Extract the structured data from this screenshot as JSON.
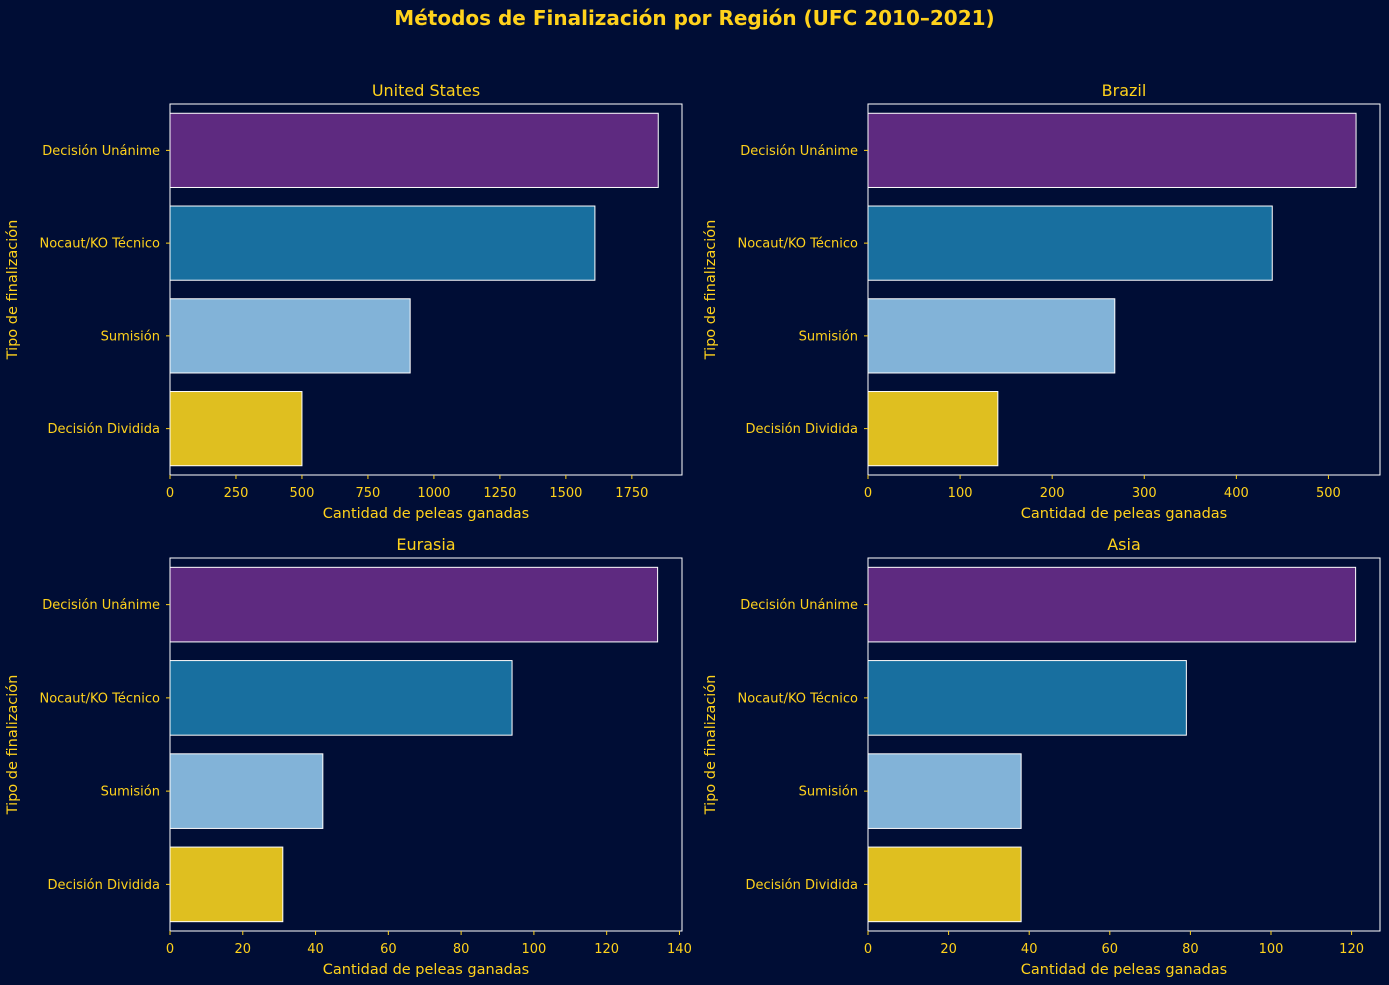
{
  "figure": {
    "title": "Métodos de Finalización por Región (UFC 2010–2021)",
    "colors": {
      "background": "#000d35",
      "text": "#ffd21c",
      "spine": "#ffffff"
    }
  },
  "chart_data": [
    {
      "type": "bar",
      "orientation": "horizontal",
      "title": "United States",
      "xlabel": "Cantidad de peleas ganadas",
      "ylabel": "Tipo de finalización",
      "categories": [
        "Decisión Unánime",
        "Nocaut/KO Técnico",
        "Sumisión",
        "Decisión Dividida"
      ],
      "values": [
        1850,
        1610,
        910,
        500
      ],
      "colors": [
        "#5e2a80",
        "#186f9f",
        "#82b3d8",
        "#dfbf20"
      ],
      "xlim": [
        0,
        1940
      ],
      "xticks": [
        0,
        250,
        500,
        750,
        1000,
        1250,
        1500,
        1750
      ],
      "grid": false
    },
    {
      "type": "bar",
      "orientation": "horizontal",
      "title": "Brazil",
      "xlabel": "Cantidad de peleas ganadas",
      "ylabel": "Tipo de finalización",
      "categories": [
        "Decisión Unánime",
        "Nocaut/KO Técnico",
        "Sumisión",
        "Decisión Dividida"
      ],
      "values": [
        530,
        439,
        268,
        141
      ],
      "colors": [
        "#5e2a80",
        "#186f9f",
        "#82b3d8",
        "#dfbf20"
      ],
      "xlim": [
        0,
        556
      ],
      "xticks": [
        0,
        100,
        200,
        300,
        400,
        500
      ],
      "grid": false
    },
    {
      "type": "bar",
      "orientation": "horizontal",
      "title": "Eurasia",
      "xlabel": "Cantidad de peleas ganadas",
      "ylabel": "Tipo de finalización",
      "categories": [
        "Decisión Unánime",
        "Nocaut/KO Técnico",
        "Sumisión",
        "Decisión Dividida"
      ],
      "values": [
        134,
        94,
        42,
        31
      ],
      "colors": [
        "#5e2a80",
        "#186f9f",
        "#82b3d8",
        "#dfbf20"
      ],
      "xlim": [
        0,
        140.7
      ],
      "xticks": [
        0,
        20,
        40,
        60,
        80,
        100,
        120,
        140
      ],
      "grid": false
    },
    {
      "type": "bar",
      "orientation": "horizontal",
      "title": "Asia",
      "xlabel": "Cantidad de peleas ganadas",
      "ylabel": "Tipo de finalización",
      "categories": [
        "Decisión Unánime",
        "Nocaut/KO Técnico",
        "Sumisión",
        "Decisión Dividida"
      ],
      "values": [
        121,
        79,
        38,
        38
      ],
      "colors": [
        "#5e2a80",
        "#186f9f",
        "#82b3d8",
        "#dfbf20"
      ],
      "xlim": [
        0,
        127.05
      ],
      "xticks": [
        0,
        20,
        40,
        60,
        80,
        100,
        120
      ],
      "grid": false
    }
  ]
}
